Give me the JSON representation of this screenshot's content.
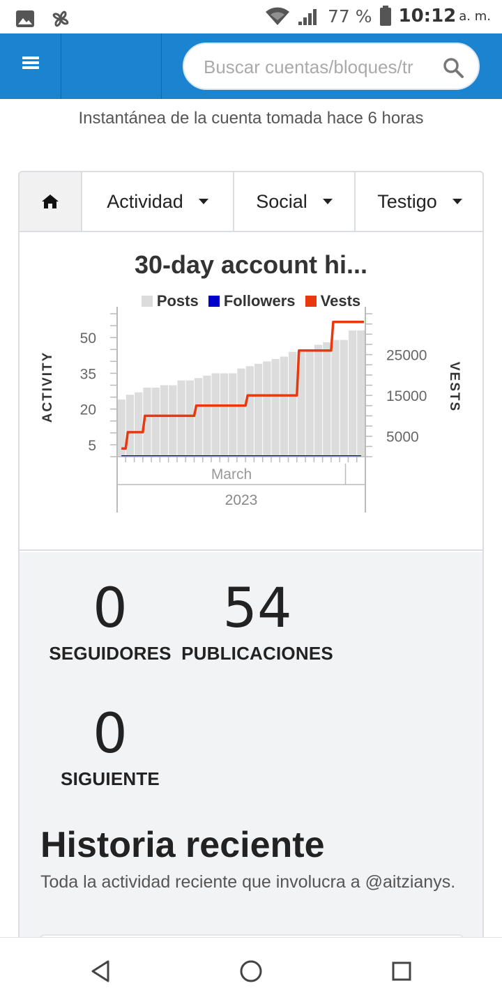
{
  "status_bar": {
    "battery": "77 %",
    "time": "10:12",
    "ampm": "a. m.",
    "icons": [
      "image-icon",
      "pinwheel-icon",
      "wifi-icon",
      "signal-icon",
      "battery-icon"
    ]
  },
  "header": {
    "search_placeholder": "Buscar cuentas/bloques/tr"
  },
  "snapshot_text": "Instantánea de la cuenta tomada hace 6 horas",
  "tabs": [
    {
      "label": "Actividad"
    },
    {
      "label": "Social"
    },
    {
      "label": "Testigo"
    }
  ],
  "chart_data": {
    "type": "bar",
    "title": "30-day account hi...",
    "legend": [
      "Posts",
      "Followers",
      "Vests"
    ],
    "colors": {
      "Posts": "#dcdcdc",
      "Followers": "#0000cc",
      "Vests": "#e8380d"
    },
    "ylabel_left": "ACTIVITY",
    "ylabel_right": "VESTS",
    "yticks_left": [
      "50",
      "35",
      "20",
      "5"
    ],
    "yticks_right": [
      "25000",
      "15000",
      "5000"
    ],
    "ylim_left": [
      0,
      60
    ],
    "ylim_right": [
      0,
      35000
    ],
    "x_month_label": "March",
    "x_year_label": "2023",
    "series": [
      {
        "name": "Posts",
        "values": [
          24,
          26,
          27,
          29,
          29,
          30,
          30,
          32,
          32,
          33,
          34,
          35,
          35,
          35,
          37,
          38,
          39,
          40,
          41,
          42,
          44,
          44,
          45,
          47,
          48,
          49,
          49,
          53,
          53
        ]
      },
      {
        "name": "Followers",
        "values": [
          0,
          0,
          0,
          0,
          0,
          0,
          0,
          0,
          0,
          0,
          0,
          0,
          0,
          0,
          0,
          0,
          0,
          0,
          0,
          0,
          0,
          0,
          0,
          0,
          0,
          0,
          0,
          0,
          0
        ]
      },
      {
        "name": "Vests",
        "values": [
          2000,
          6000,
          6000,
          10000,
          10000,
          10000,
          10000,
          10000,
          10000,
          12500,
          12500,
          12500,
          12500,
          12500,
          12500,
          15000,
          15000,
          15000,
          15000,
          15000,
          15000,
          26000,
          26000,
          26000,
          26000,
          33000,
          33000,
          33000,
          33000
        ]
      }
    ]
  },
  "stats": {
    "followers": {
      "value": "0",
      "label": "SEGUIDORES"
    },
    "posts": {
      "value": "54",
      "label": "PUBLICACIONES"
    },
    "following": {
      "value": "0",
      "label": "SIGUIENTE"
    }
  },
  "history": {
    "title": "Historia reciente",
    "subtitle": "Toda la actividad reciente que involucra a @aitzianys."
  }
}
